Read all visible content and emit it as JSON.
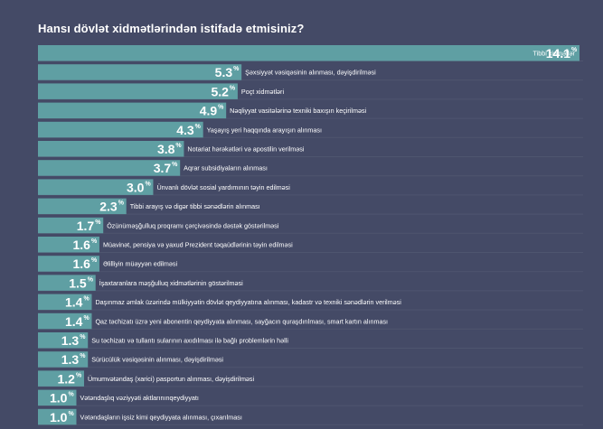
{
  "chart_data": {
    "type": "bar",
    "orientation": "horizontal",
    "title": "Hansı dövlət xidmətlərindən istifadə etmisiniz?",
    "unit": "%",
    "xlim": [
      0,
      14.1
    ],
    "colors": {
      "background": "#444a66",
      "bar": "#5f9fa3",
      "text": "#ffffff"
    },
    "categories": [
      "Tibbi xidmətlər",
      "Şəxsiyyət vəsiqəsinin alınması, dəyişdirilməsi",
      "Poçt xidmətləri",
      "Nəqliyyat vasitələrinə texniki baxışın keçirilməsi",
      "Yaşayış yeri haqqında arayışın alınması",
      "Notariat hərəkətləri və apostilin verilməsi",
      "Aqrar subsidiyaların alınması",
      "Ünvanlı dövlət sosial yardımının təyin edilməsi",
      "Tibbi arayış və digər tibbi sənədlərin alınması",
      "Özünüməşğulluq proqramı çərçivəsində dəstək göstərilməsi",
      "Müavinət, pensiya və yaxud Prezident təqaüdlərinin təyin edilməsi",
      "Əlilliyin müəyyən edilməsi",
      "İşaxtaranlara məşğulluq xidmətlərinin göstərilməsi",
      "Daşınmaz əmlak üzərində mülkiyyətin dövlət qeydiyyatına alınması, kadastr və texniki sənədlərin verilməsi",
      "Qaz təchizatı üzrə yeni abonentin qeydiyyata alınması, sayğacın quraşdırılması, smart kartın alınması",
      "Su təchizatı və tullantı sularının axıdılması ilə bağlı problemlərin həlli",
      "Sürücülük vəsiqəsinin alınması, dəyişdirilməsi",
      "Ümumvətəndaş (xarici) pasportun alınması, dəyişdirilməsi",
      "Vətəndaşlıq vəziyyəti aktlarınınqeydiyyatı",
      "Vətəndaşların işsiz kimi qeydiyyata alınması, çıxarılması"
    ],
    "values": [
      14.1,
      5.3,
      5.2,
      4.9,
      4.3,
      3.8,
      3.7,
      3.0,
      2.3,
      1.7,
      1.6,
      1.6,
      1.5,
      1.4,
      1.4,
      1.3,
      1.3,
      1.2,
      1.0,
      1.0
    ],
    "value_labels": [
      "14.1",
      "5.3",
      "5.2",
      "4.9",
      "4.3",
      "3.8",
      "3.7",
      "3.0",
      "2.3",
      "1.7",
      "1.6",
      "1.6",
      "1.5",
      "1.4",
      "1.4",
      "1.3",
      "1.3",
      "1.2",
      "1.0",
      "1.0"
    ]
  }
}
